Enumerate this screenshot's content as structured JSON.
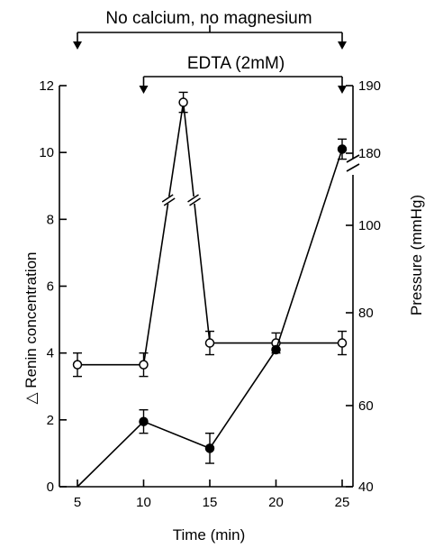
{
  "chart_data": {
    "type": "line",
    "xlabel": "Time (min)",
    "ylabel_left": "△ Renin concentration",
    "ylabel_right": "Pressure (mmHg)",
    "x_ticks": [
      "5",
      "10",
      "15",
      "20",
      "25"
    ],
    "y_left_ticks": [
      "0",
      "2",
      "4",
      "6",
      "8",
      "10",
      "12"
    ],
    "y_left_lim": [
      0,
      12
    ],
    "y_right_ticks": [
      "40",
      "60",
      "80",
      "100",
      "180",
      "190"
    ],
    "y_right_lim": [
      40,
      190
    ],
    "y_right_break": "between 100 and 180",
    "y_left_break": "between 8 and 10",
    "annotations": {
      "top": "No calcium, no magnesium",
      "second": "EDTA (2mM)"
    },
    "periods": {
      "no_calcium": [
        5,
        25
      ],
      "edta": [
        10,
        25
      ]
    },
    "series": [
      {
        "marker": "open-circle",
        "axis": "left",
        "x": [
          5,
          10,
          13,
          15,
          20,
          25
        ],
        "y": [
          3.65,
          3.65,
          11.5,
          4.3,
          4.3,
          4.3
        ],
        "err": [
          0.35,
          0.35,
          0.3,
          0.35,
          0.3,
          0.35
        ],
        "show_marker": [
          true,
          true,
          true,
          true,
          true,
          true
        ]
      },
      {
        "marker": "filled-circle",
        "axis": "left",
        "x": [
          5,
          10,
          15,
          20,
          25
        ],
        "y": [
          0,
          1.95,
          1.15,
          4.1,
          10.1
        ],
        "err": [
          0,
          0.35,
          0.45,
          0,
          0.3
        ],
        "show_marker": [
          false,
          true,
          true,
          true,
          true
        ]
      }
    ]
  }
}
